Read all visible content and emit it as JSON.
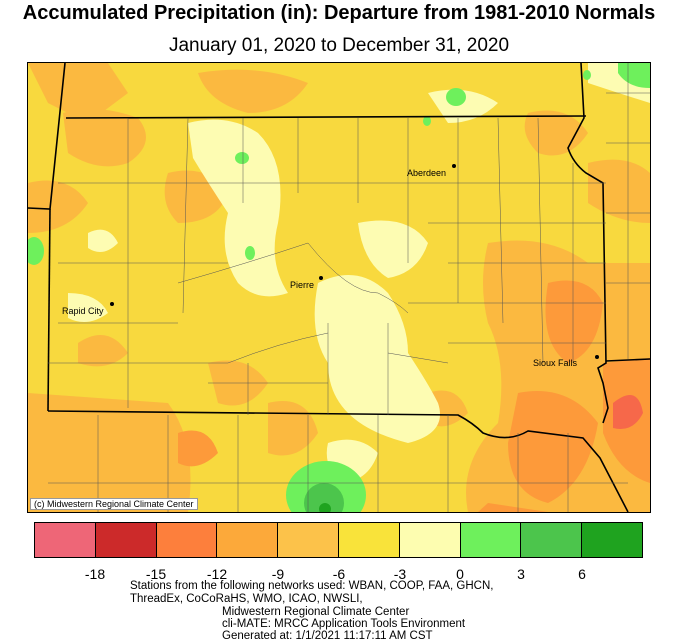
{
  "title": "Accumulated Precipitation (in): Departure from 1981-2010 Normals",
  "subtitle": "January 01, 2020 to December 31, 2020",
  "cities": [
    {
      "name": "Aberdeen"
    },
    {
      "name": "Pierre"
    },
    {
      "name": "Rapid City"
    },
    {
      "name": "Sioux Falls"
    }
  ],
  "copyright": "(c) Midwestern Regional Climate Center",
  "legend": {
    "colors": [
      "#ee6677",
      "#cc2a2a",
      "#fd7f3c",
      "#fca93a",
      "#fcc24a",
      "#f9e33a",
      "#fdfdb0",
      "#6ef05c",
      "#4cc54c",
      "#1fa31f"
    ],
    "ticks": [
      "-18",
      "-15",
      "-12",
      "-9",
      "-6",
      "-3",
      "0",
      "3",
      "6"
    ]
  },
  "footer": {
    "line1": "Stations from the following networks used: WBAN, COOP, FAA, GHCN,",
    "line2": "ThreadEx, CoCoRaHS, WMO, ICAO, NWSLI,",
    "line3": "Midwestern Regional Climate Center",
    "line4": "cli-MATE: MRCC Application Tools Environment",
    "line5": "Generated at: 1/1/2021 11:17:11 AM CST"
  }
}
